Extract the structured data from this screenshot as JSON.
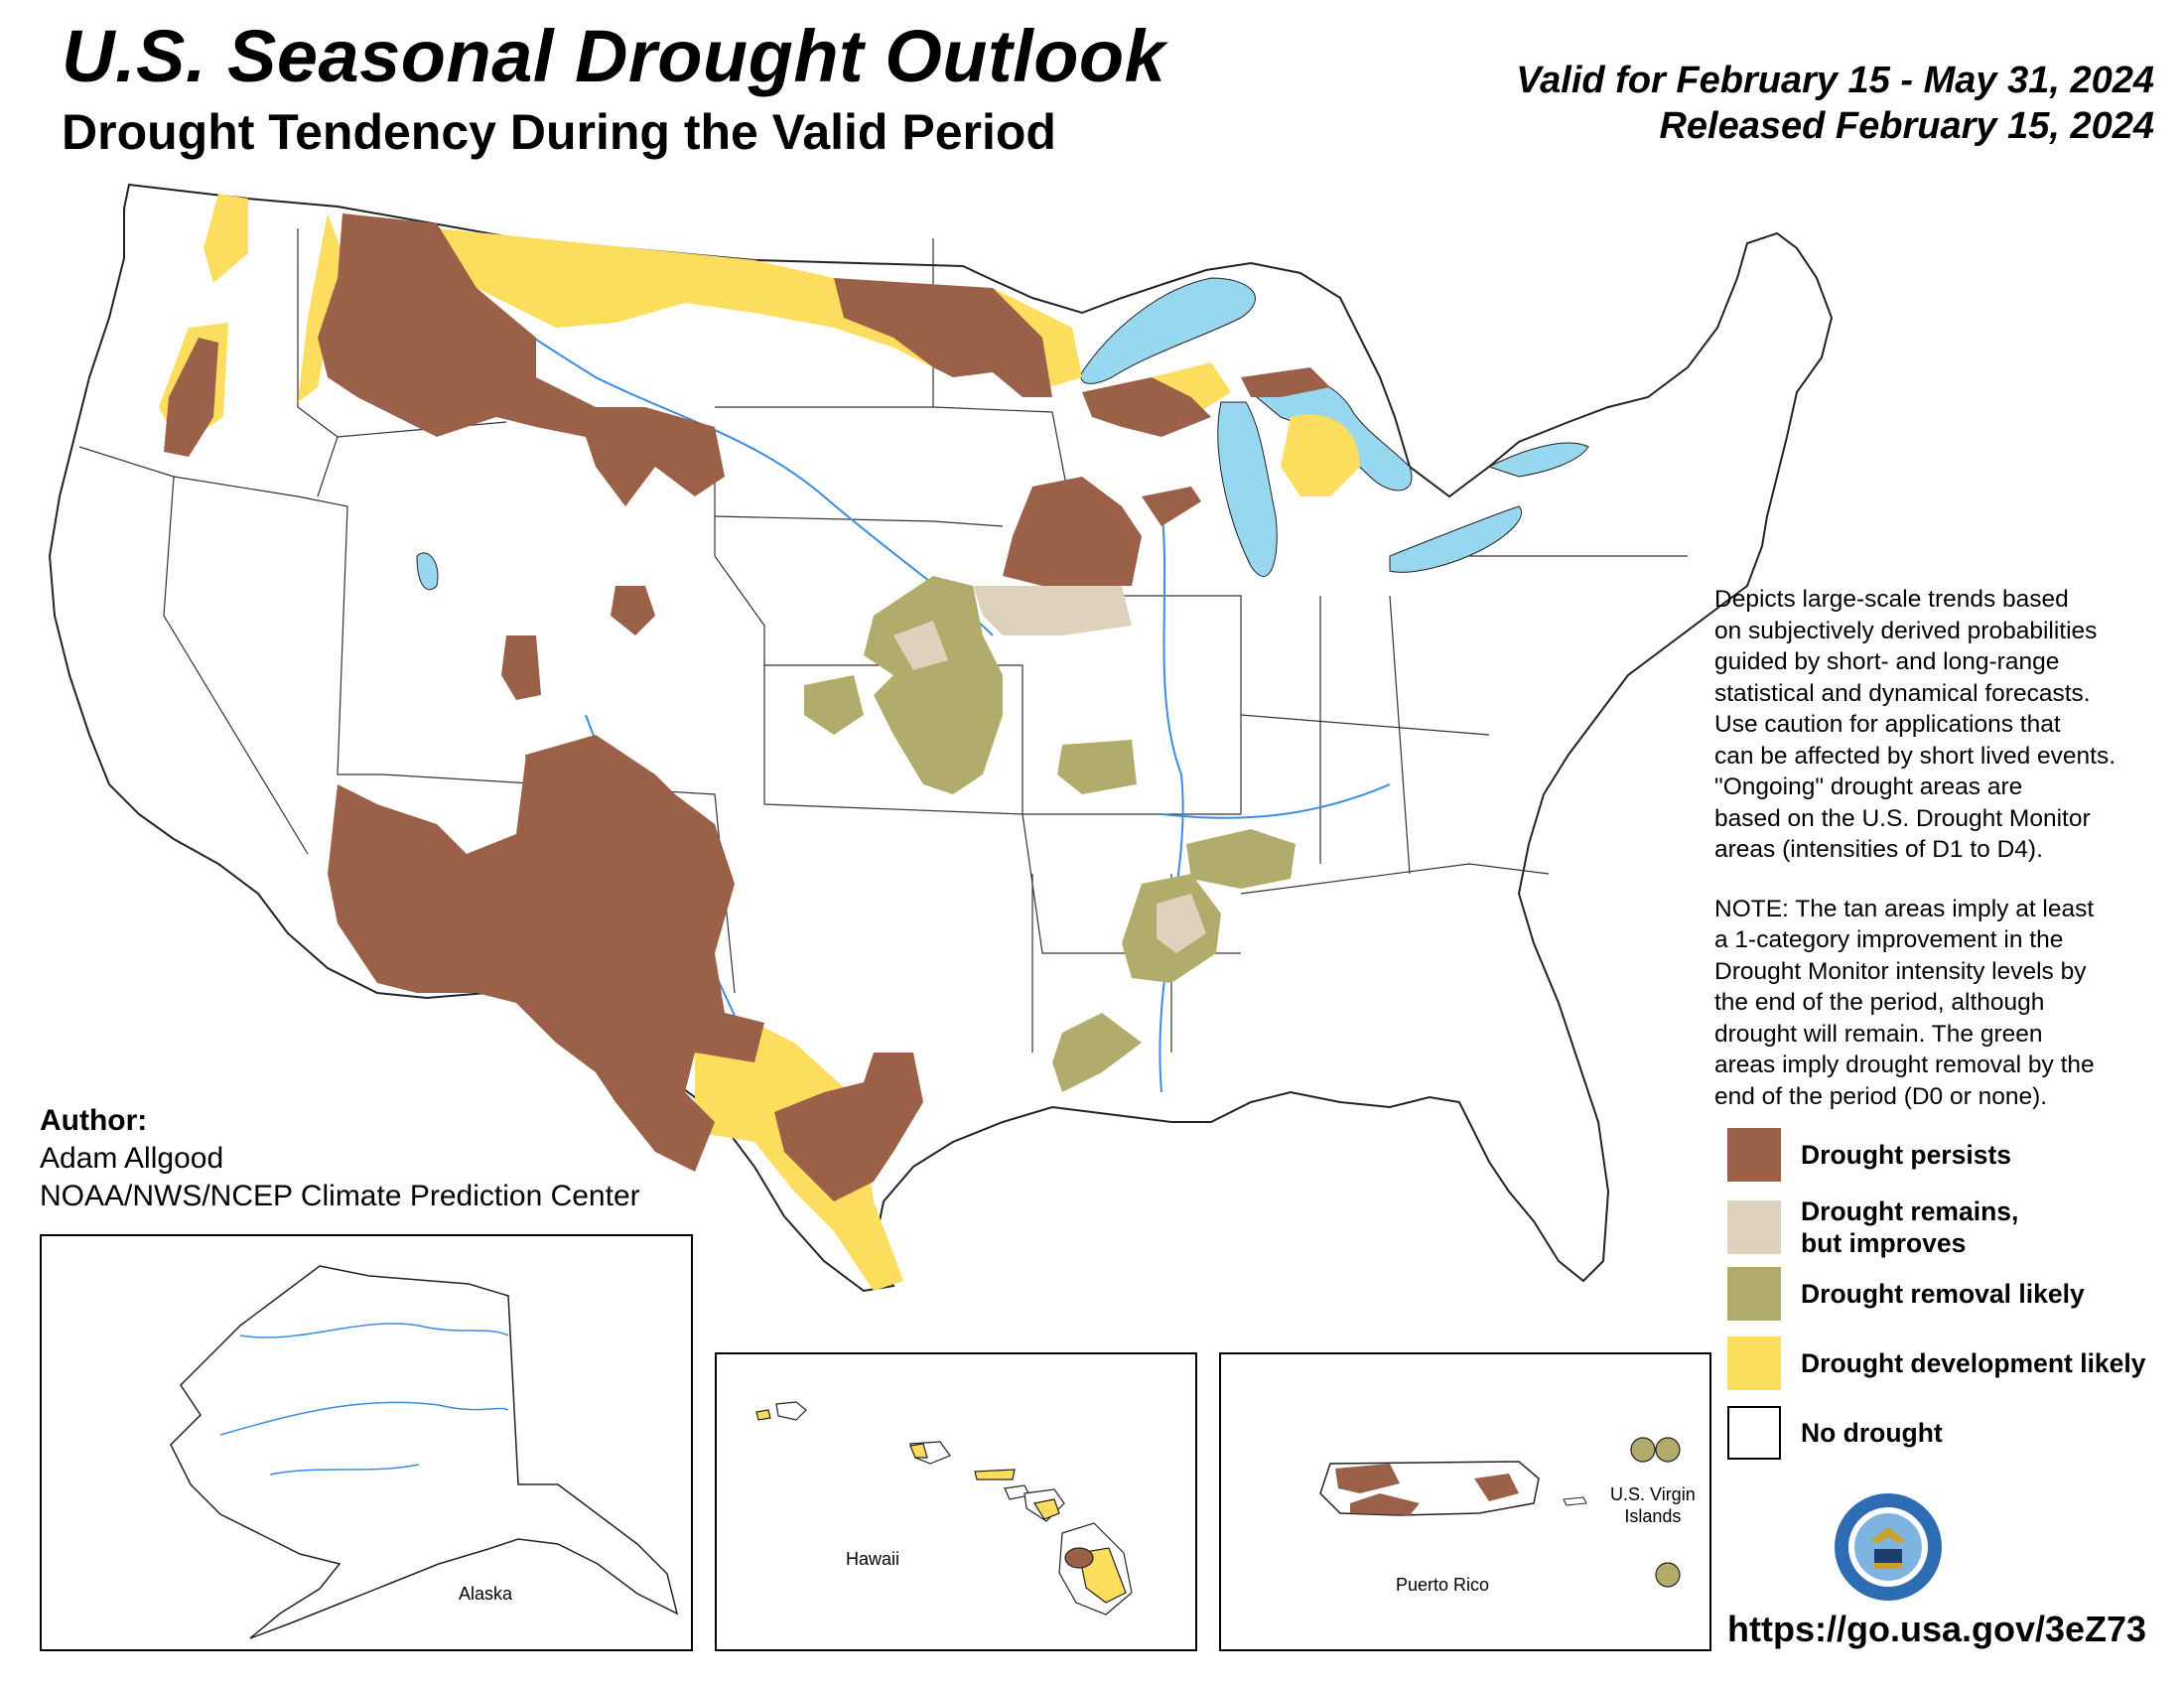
{
  "header": {
    "title": "U.S. Seasonal Drought Outlook",
    "subtitle": "Drought Tendency During the Valid Period",
    "valid_for": "Valid for February 15 - May 31, 2024",
    "released": "Released February 15, 2024"
  },
  "description": {
    "paragraph1": "Depicts large-scale trends based\non subjectively derived probabilities\nguided by short- and long-range\nstatistical and dynamical forecasts.\nUse caution for applications that\ncan be affected by short lived events.\n\"Ongoing\" drought areas are\nbased on the U.S. Drought Monitor\nareas (intensities of D1 to D4).",
    "paragraph2": "NOTE: The tan areas imply at least\na 1-category improvement in the\nDrought Monitor intensity levels by\nthe end of the period, although\ndrought will remain. The green\nareas imply drought removal by the\nend of the period (D0 or none)."
  },
  "legend": [
    {
      "label": "Drought persists",
      "color": "#9B6148"
    },
    {
      "label": "Drought remains,\nbut improves",
      "color": "#DED2BC"
    },
    {
      "label": "Drought removal likely",
      "color": "#B1AC6B"
    },
    {
      "label": "Drought development likely",
      "color": "#FCDD5D"
    },
    {
      "label": "No drought",
      "color": "#FFFFFF"
    }
  ],
  "author": {
    "heading": "Author:",
    "name": "Adam Allgood",
    "org": "NOAA/NWS/NCEP Climate Prediction Center"
  },
  "insets": {
    "alaska": "Alaska",
    "hawaii": "Hawaii",
    "puerto_rico": "Puerto Rico",
    "usvi_line1": "U.S. Virgin",
    "usvi_line2": "Islands"
  },
  "url": "https://go.usa.gov/3eZ73",
  "colors": {
    "persists": "#9B6148",
    "improves": "#DED2BC",
    "removal": "#B1AC6B",
    "development": "#FCDD5D",
    "water": "#97D7F0",
    "rivers": "#3A8CE0",
    "borders": "#222222"
  }
}
